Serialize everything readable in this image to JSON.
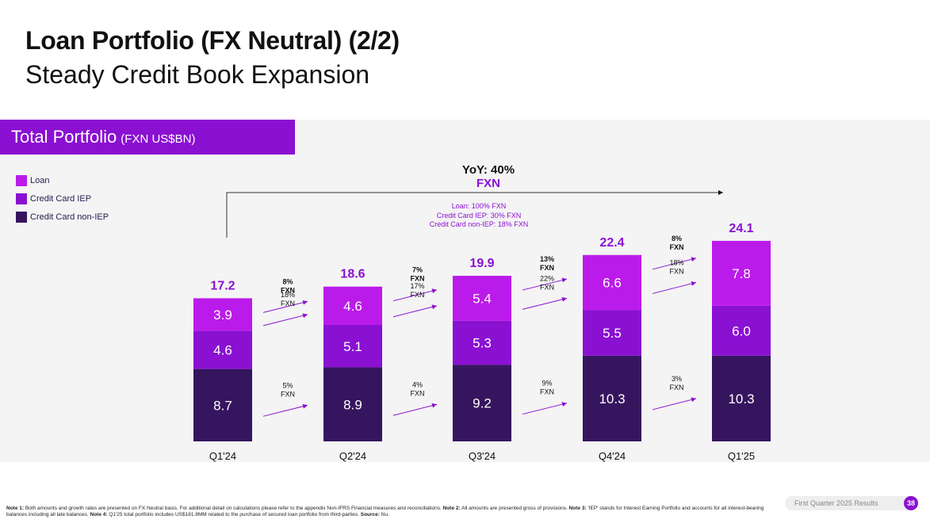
{
  "header": {
    "title": "Loan Portfolio (FX Neutral) (2/2)",
    "subtitle": "Steady Credit Book Expansion"
  },
  "section": {
    "title": "Total Portfolio",
    "unit": "(FXN US$BN)"
  },
  "legend": [
    {
      "label": "Loan",
      "color": "#bb1bea"
    },
    {
      "label": "Credit Card IEP",
      "color": "#8a10d2"
    },
    {
      "label": "Credit Card non-IEP",
      "color": "#36155f"
    }
  ],
  "yoy": {
    "line1": "YoY: 40%",
    "line2": "FXN",
    "details": [
      "Loan: 100% FXN",
      "Credit Card IEP: 30% FXN",
      "Credit Card non-IEP: 18% FXN"
    ]
  },
  "chart_data": {
    "type": "bar",
    "stacked": true,
    "categories": [
      "Q1'24",
      "Q2'24",
      "Q3'24",
      "Q4'24",
      "Q1'25"
    ],
    "series": [
      {
        "name": "Credit Card non-IEP",
        "values": [
          8.7,
          8.9,
          9.2,
          10.3,
          10.3
        ]
      },
      {
        "name": "Credit Card IEP",
        "values": [
          4.6,
          5.1,
          5.3,
          5.5,
          6.0
        ]
      },
      {
        "name": "Loan",
        "values": [
          3.9,
          4.6,
          5.4,
          6.6,
          7.8
        ]
      }
    ],
    "totals": [
      "17.2",
      "18.6",
      "19.9",
      "22.4",
      "24.1"
    ],
    "segment_labels": [
      [
        "8.7",
        "8.9",
        "9.2",
        "10.3",
        "10.3"
      ],
      [
        "4.6",
        "5.1",
        "5.3",
        "5.5",
        "6.0"
      ],
      [
        "3.9",
        "4.6",
        "5.4",
        "6.6",
        "7.8"
      ]
    ],
    "growth_annotations": [
      {
        "total": [
          "8%",
          "FXN"
        ],
        "loan": [
          "18%",
          "FXN"
        ],
        "non_iep": [
          "5%",
          "FXN"
        ]
      },
      {
        "total": [
          "7%",
          "FXN"
        ],
        "loan": [
          "17%",
          "FXN"
        ],
        "non_iep": [
          "4%",
          "FXN"
        ]
      },
      {
        "total": [
          "13%",
          "FXN"
        ],
        "loan": [
          "22%",
          "FXN"
        ],
        "non_iep": [
          "9%",
          "FXN"
        ]
      },
      {
        "total": [
          "8%",
          "FXN"
        ],
        "loan": [
          "18%",
          "FXN"
        ],
        "non_iep": [
          "3%",
          "FXN"
        ]
      }
    ],
    "title": "Total Portfolio (FXN US$BN)",
    "xlabel": "",
    "ylabel": "",
    "ylim": [
      0,
      27
    ]
  },
  "footnote": {
    "note1_label": "Note 1:",
    "note1": " Both amounts and growth rates are presented on FX Neutral basis. For additional detail on calculations please refer to the appendix Non-IFRS Financial measures and reconciliations. ",
    "note2_label": "Note 2:",
    "note2": " All amounts are presented gross of provisions. ",
    "note3_label": "Note 3:",
    "note3": " 'IEP' stands for Interest Earning Portfolio and accounts for all interest-bearing balances including all late balances. ",
    "note4_label": "Note 4:",
    "note4": " Q1'25 total portfolio includes US$181.8MM related to the purchase of secured loan portfolio from third-parties. ",
    "source_label": "Source:",
    "source": " Nu."
  },
  "footer": {
    "label": "First Quarter 2025 Results",
    "page": "38"
  }
}
